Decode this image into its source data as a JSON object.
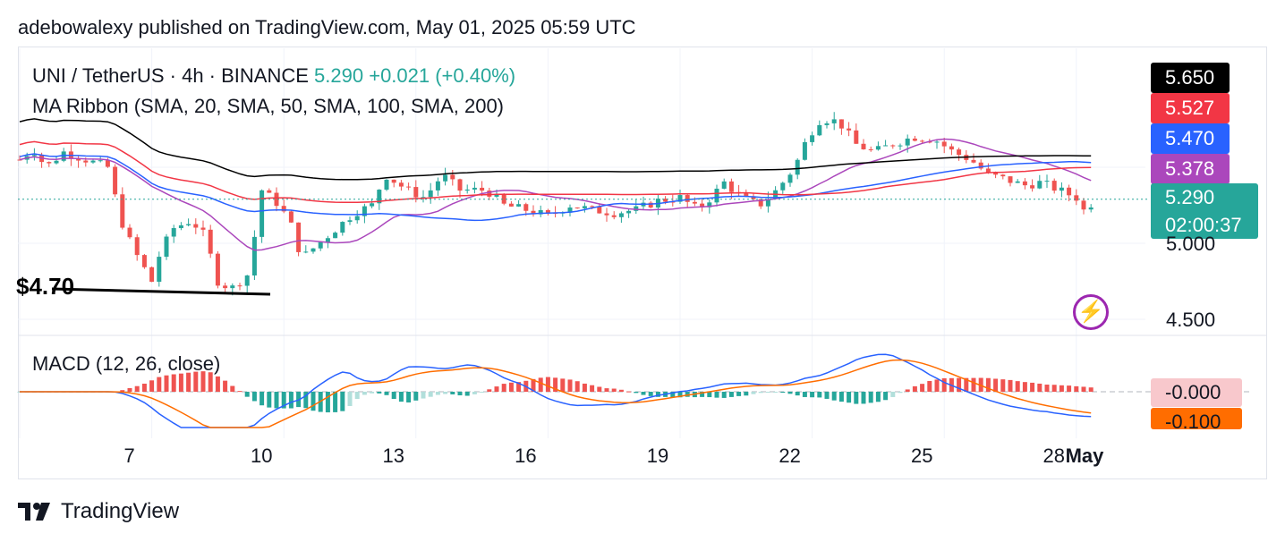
{
  "header": {
    "published_text": "adebowalexy published on TradingView.com, May 01, 2025 05:59 UTC"
  },
  "legend": {
    "symbol": "UNI / TetherUS · 4h · BINANCE",
    "price": "5.290",
    "change": "+0.021 (+0.40%)",
    "indicator": "MA Ribbon (SMA, 20, SMA, 50, SMA, 100, SMA, 200)",
    "macd": "MACD (12, 26, close)"
  },
  "annotation": {
    "support_label": "$4.70"
  },
  "badges": {
    "ma200": {
      "value": "5.650",
      "color": "#000000"
    },
    "ma100": {
      "value": "5.527",
      "color": "#f23645"
    },
    "ma50": {
      "value": "5.470",
      "color": "#2962ff"
    },
    "ma20": {
      "value": "5.378",
      "color": "#ab47bc"
    },
    "price": {
      "value": "5.290",
      "countdown": "02:00:37",
      "color": "#26a69a"
    },
    "macd_hist": {
      "value": "-0.000",
      "bg": "#f8c8cc"
    },
    "macd_signal": {
      "value": "-0.100",
      "bg": "#ff6d00"
    }
  },
  "price_axis": [
    "5.000",
    "4.500"
  ],
  "footer": {
    "brand": "TradingView",
    "logo_icon": "tradingview-logo-icon"
  },
  "chart_data": {
    "type": "candlestick",
    "symbol": "UNI / TetherUS",
    "timeframe": "4h",
    "exchange": "BINANCE",
    "x_tick_labels": [
      "7",
      "10",
      "13",
      "16",
      "19",
      "22",
      "25",
      "28",
      "May"
    ],
    "y_tick_labels": [
      "5.000",
      "4.500"
    ],
    "y_range": [
      4.35,
      5.95
    ],
    "current_price": 5.29,
    "support_level": 4.7,
    "close_path": [
      {
        "x": 0,
        "y": 5.55
      },
      {
        "x": 0.3,
        "y": 5.62
      },
      {
        "x": 0.6,
        "y": 5.5
      },
      {
        "x": 1,
        "y": 5.6
      },
      {
        "x": 1.5,
        "y": 5.55
      },
      {
        "x": 2,
        "y": 5.5
      },
      {
        "x": 2.3,
        "y": 5.15
      },
      {
        "x": 2.6,
        "y": 4.95
      },
      {
        "x": 3,
        "y": 4.75
      },
      {
        "x": 3.2,
        "y": 4.95
      },
      {
        "x": 3.5,
        "y": 5.1
      },
      {
        "x": 3.9,
        "y": 5.15
      },
      {
        "x": 4.2,
        "y": 5.05
      },
      {
        "x": 4.5,
        "y": 4.75
      },
      {
        "x": 4.8,
        "y": 4.7
      },
      {
        "x": 5.2,
        "y": 4.8
      },
      {
        "x": 5.5,
        "y": 5.35
      },
      {
        "x": 5.9,
        "y": 5.25
      },
      {
        "x": 6.2,
        "y": 5.1
      },
      {
        "x": 6.4,
        "y": 4.9
      },
      {
        "x": 6.8,
        "y": 5.0
      },
      {
        "x": 7.2,
        "y": 5.1
      },
      {
        "x": 7.6,
        "y": 5.2
      },
      {
        "x": 8,
        "y": 5.25
      },
      {
        "x": 8.3,
        "y": 5.45
      },
      {
        "x": 8.8,
        "y": 5.35
      },
      {
        "x": 9.2,
        "y": 5.3
      },
      {
        "x": 9.6,
        "y": 5.45
      },
      {
        "x": 10,
        "y": 5.35
      },
      {
        "x": 10.6,
        "y": 5.35
      },
      {
        "x": 11,
        "y": 5.25
      },
      {
        "x": 11.5,
        "y": 5.22
      },
      {
        "x": 12,
        "y": 5.18
      },
      {
        "x": 12.5,
        "y": 5.25
      },
      {
        "x": 13,
        "y": 5.22
      },
      {
        "x": 13.5,
        "y": 5.2
      },
      {
        "x": 14,
        "y": 5.22
      },
      {
        "x": 14.5,
        "y": 5.28
      },
      {
        "x": 15,
        "y": 5.3
      },
      {
        "x": 15.4,
        "y": 5.22
      },
      {
        "x": 15.7,
        "y": 5.3
      },
      {
        "x": 16,
        "y": 5.4
      },
      {
        "x": 16.4,
        "y": 5.3
      },
      {
        "x": 16.8,
        "y": 5.25
      },
      {
        "x": 17.2,
        "y": 5.35
      },
      {
        "x": 17.6,
        "y": 5.5
      },
      {
        "x": 17.9,
        "y": 5.7
      },
      {
        "x": 18.2,
        "y": 5.82
      },
      {
        "x": 18.6,
        "y": 5.8
      },
      {
        "x": 19,
        "y": 5.65
      },
      {
        "x": 19.4,
        "y": 5.6
      },
      {
        "x": 19.8,
        "y": 5.65
      },
      {
        "x": 20.3,
        "y": 5.7
      },
      {
        "x": 20.8,
        "y": 5.68
      },
      {
        "x": 21.2,
        "y": 5.6
      },
      {
        "x": 21.6,
        "y": 5.55
      },
      {
        "x": 22,
        "y": 5.45
      },
      {
        "x": 22.4,
        "y": 5.42
      },
      {
        "x": 22.8,
        "y": 5.38
      },
      {
        "x": 23.2,
        "y": 5.4
      },
      {
        "x": 23.6,
        "y": 5.35
      },
      {
        "x": 24,
        "y": 5.3
      },
      {
        "x": 24.2,
        "y": 5.2
      },
      {
        "x": 24.4,
        "y": 5.29
      }
    ],
    "ma_ribbon": [
      {
        "name": "SMA 20",
        "color": "#ab47bc",
        "last": 5.378
      },
      {
        "name": "SMA 50",
        "color": "#2962ff",
        "last": 5.47
      },
      {
        "name": "SMA 100",
        "color": "#f23645",
        "last": 5.527
      },
      {
        "name": "SMA 200",
        "color": "#000000",
        "last": 5.65
      }
    ],
    "macd": {
      "name": "MACD (12, 26, close)",
      "histogram_last": -0.0,
      "signal_last": -0.1
    }
  }
}
